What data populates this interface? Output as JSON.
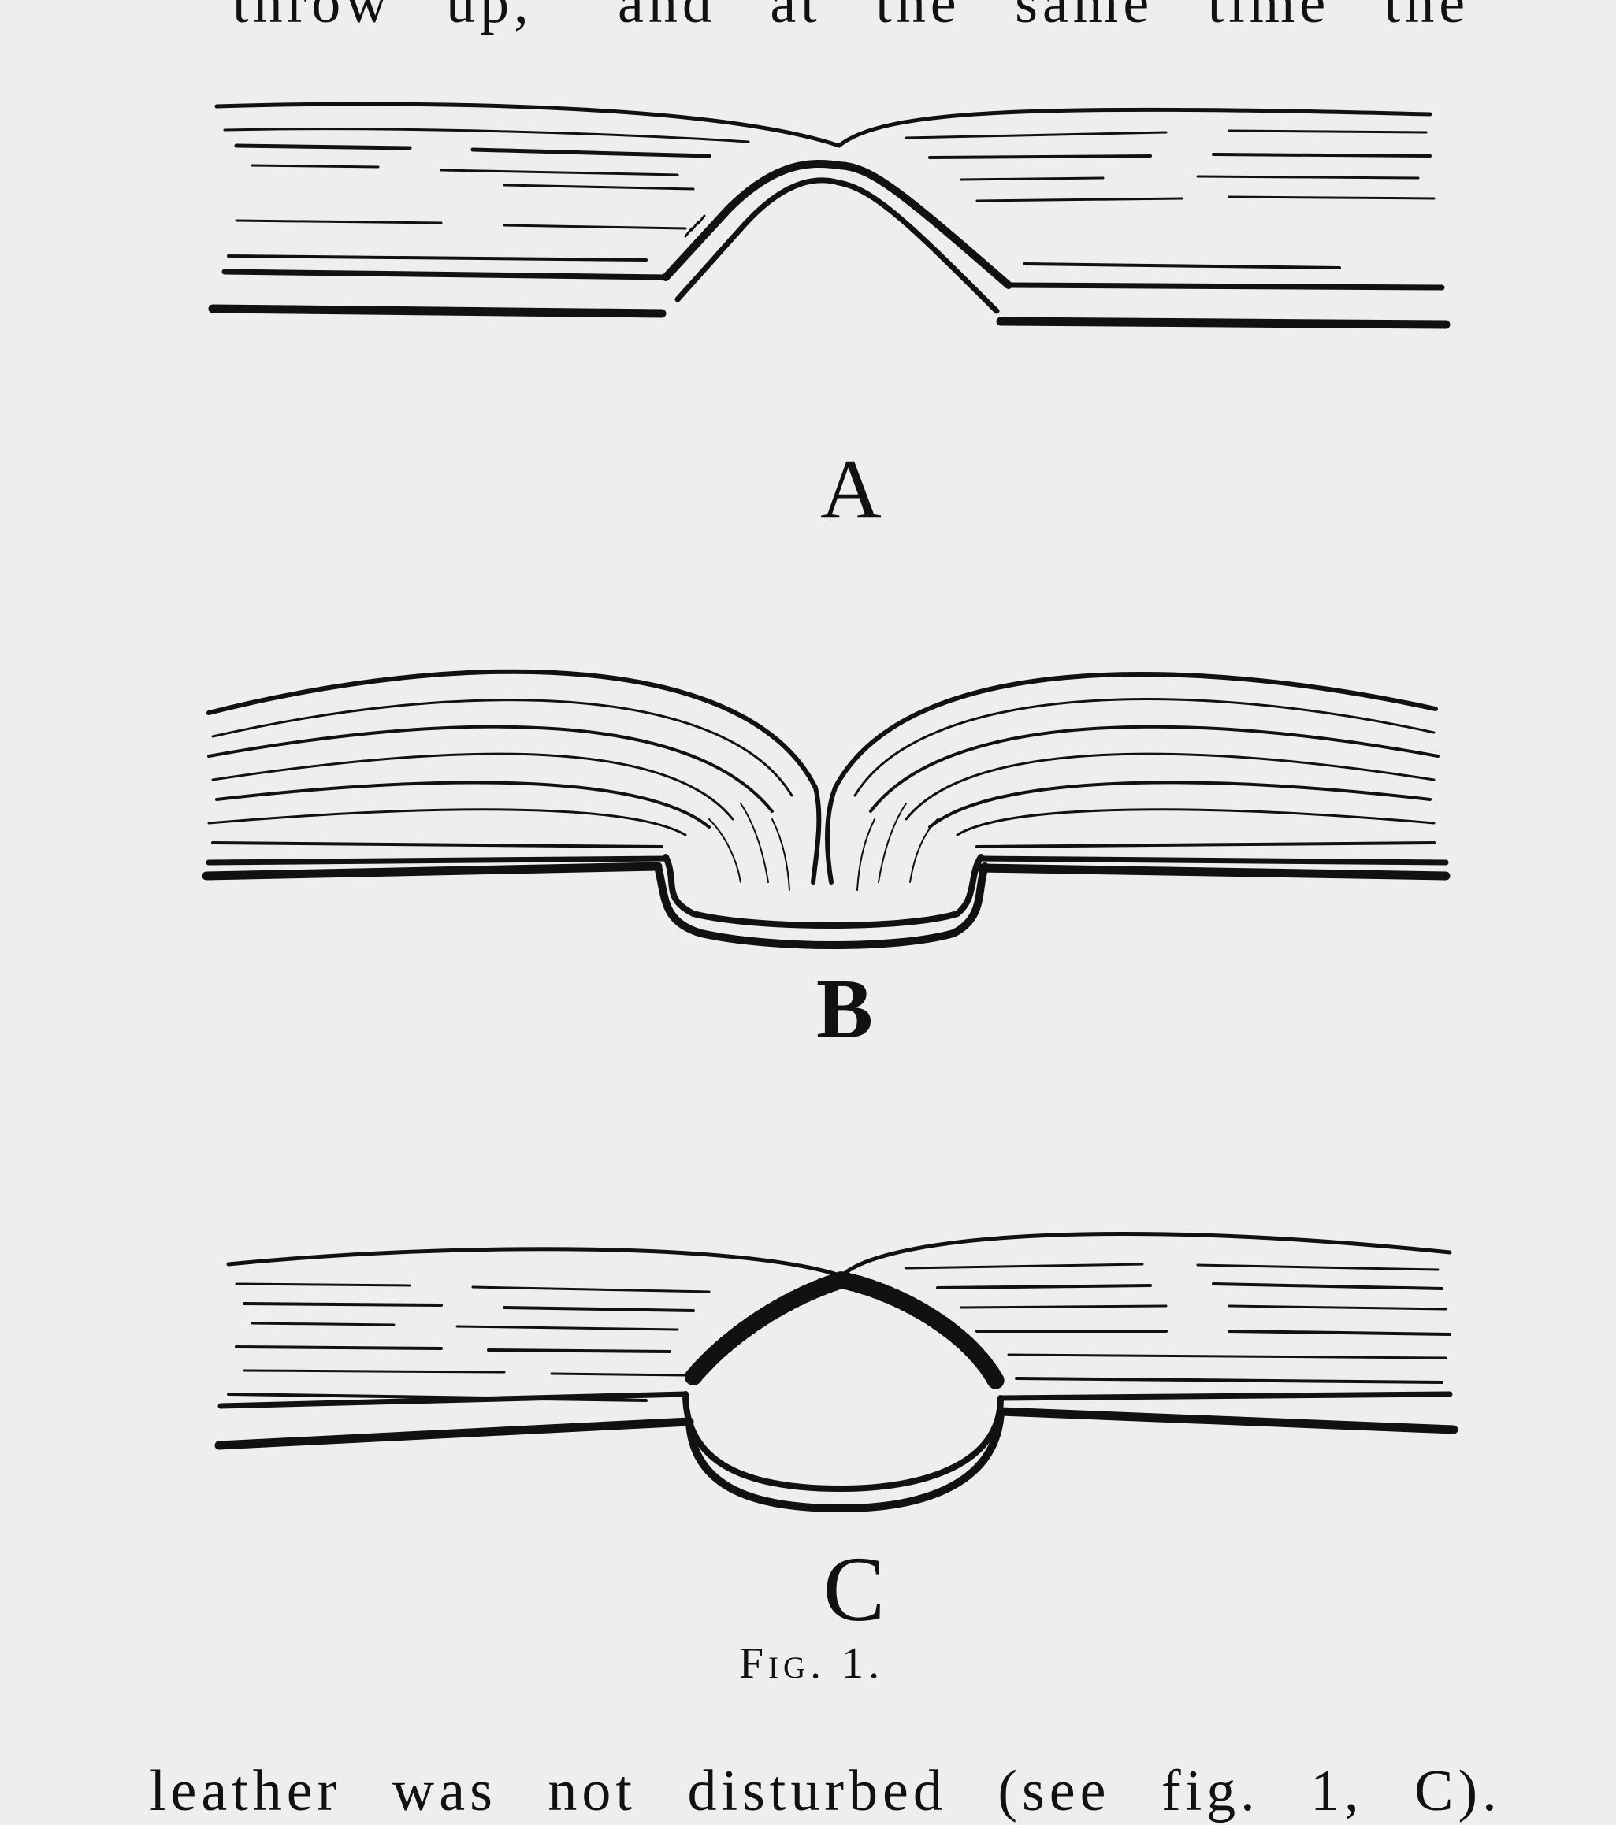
{
  "text": {
    "top_line": "throw up,” and at the same time the",
    "bottom_line": "leather was not disturbed (see fig. 1, C)."
  },
  "figure": {
    "labels": [
      "A",
      "B",
      "C"
    ],
    "caption": "Fig. 1."
  },
  "colors": {
    "paper": "#eeeeec",
    "ink": "#111111"
  }
}
